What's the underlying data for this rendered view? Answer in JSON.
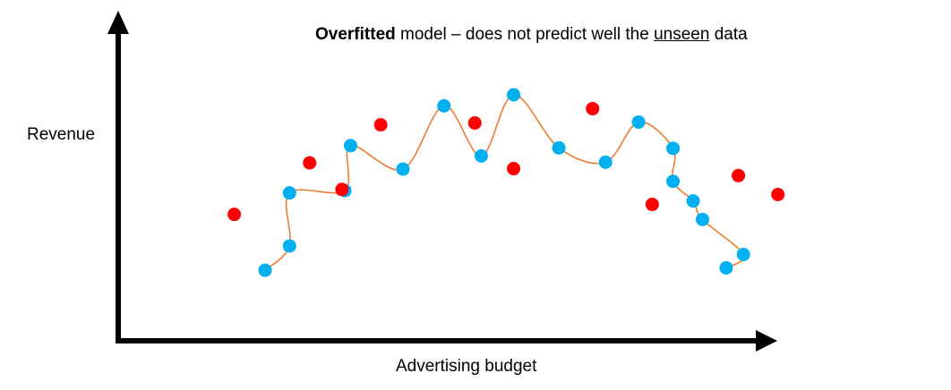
{
  "chart_data": {
    "type": "scatter",
    "title": {
      "bold": "Overfitted",
      "middle": " model – does not predict well the ",
      "underline": "unseen",
      "end": " data"
    },
    "xlabel": "Advertising budget",
    "ylabel": "Revenue",
    "xlim": [
      0,
      100
    ],
    "ylim": [
      0,
      100
    ],
    "grid": false,
    "legend": "none",
    "series": [
      {
        "role": "training",
        "color": "#00B0F0",
        "points": [
          [
            22.7,
            24.0
          ],
          [
            26.1,
            34.5
          ],
          [
            26.1,
            57.5
          ],
          [
            33.8,
            58.5
          ],
          [
            34.6,
            78.0
          ],
          [
            41.9,
            67.8
          ],
          [
            47.6,
            95.2
          ],
          [
            52.8,
            73.5
          ],
          [
            57.3,
            100.0
          ],
          [
            63.6,
            77.0
          ],
          [
            70.1,
            70.8
          ],
          [
            74.7,
            88.2
          ],
          [
            79.5,
            76.8
          ],
          [
            79.5,
            62.5
          ],
          [
            82.3,
            54.0
          ],
          [
            83.6,
            46.0
          ],
          [
            89.3,
            30.8
          ],
          [
            86.9,
            25.0
          ]
        ]
      },
      {
        "role": "unseen",
        "color": "#FF0000",
        "points": [
          [
            18.4,
            48.2
          ],
          [
            28.9,
            70.5
          ],
          [
            38.8,
            87.0
          ],
          [
            33.4,
            59.0
          ],
          [
            51.9,
            87.8
          ],
          [
            57.3,
            68.0
          ],
          [
            68.3,
            94.0
          ],
          [
            76.6,
            52.5
          ],
          [
            88.6,
            65.0
          ],
          [
            94.1,
            56.8
          ]
        ]
      }
    ],
    "fit_line": {
      "color": "#ED7D31",
      "x": [
        22.7,
        26.1,
        26.1,
        33.8,
        34.6,
        41.9,
        47.6,
        52.8,
        57.3,
        63.6,
        70.1,
        74.7,
        79.5,
        79.5,
        82.3,
        83.6,
        89.3,
        86.9
      ],
      "y": [
        24.0,
        34.5,
        57.5,
        58.5,
        78.0,
        67.8,
        95.2,
        73.5,
        100.0,
        77.0,
        70.8,
        88.2,
        76.8,
        62.5,
        54.0,
        46.0,
        30.8,
        25.0
      ]
    }
  }
}
